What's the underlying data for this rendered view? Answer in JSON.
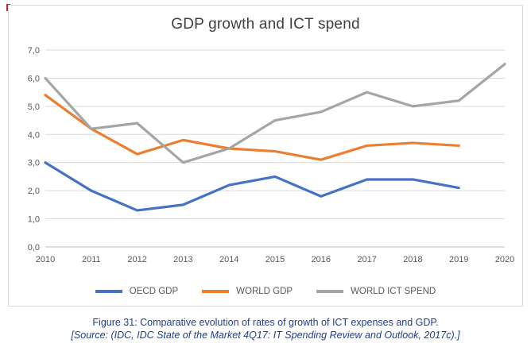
{
  "chart_data": {
    "type": "line",
    "title": "GDP growth and ICT spend",
    "x_labels": [
      "2010",
      "2011",
      "2012",
      "2013",
      "2014",
      "2015",
      "2016",
      "2017",
      "2018",
      "2019",
      "2020"
    ],
    "ylim": [
      0,
      7
    ],
    "ytick_labels": [
      "0,0",
      "1,0",
      "2,0",
      "3,0",
      "4,0",
      "5,0",
      "6,0",
      "7,0"
    ],
    "grid": true,
    "legend_position": "bottom",
    "series": [
      {
        "name": "OECD GDP",
        "color": "#4472C4",
        "values": [
          3.0,
          2.0,
          1.3,
          1.5,
          2.2,
          2.5,
          1.8,
          2.4,
          2.4,
          2.1,
          null
        ]
      },
      {
        "name": "WORLD GDP",
        "color": "#ED7D31",
        "values": [
          5.4,
          4.2,
          3.3,
          3.8,
          3.5,
          3.4,
          3.1,
          3.6,
          3.7,
          3.6,
          null
        ]
      },
      {
        "name": "WORLD ICT SPEND",
        "color": "#A5A5A5",
        "values": [
          6.0,
          4.2,
          4.4,
          3.0,
          3.5,
          4.5,
          4.8,
          5.5,
          5.0,
          5.2,
          6.5
        ]
      }
    ]
  },
  "caption": {
    "figure": "Figure 31: Comparative evolution of rates of growth of ICT expenses and GDP.",
    "source": "[Source: (IDC, IDC State of the Market 4Q17: IT Spending Review and Outlook, 2017c).]"
  }
}
